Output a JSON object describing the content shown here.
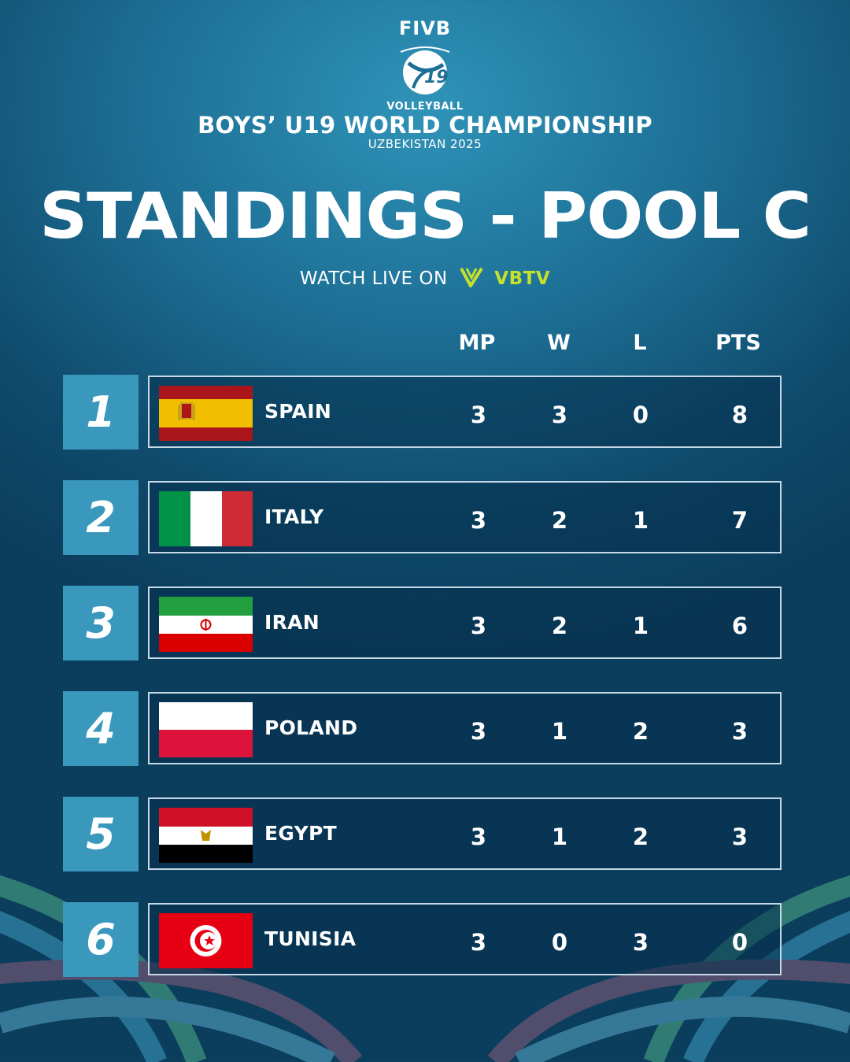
{
  "header": {
    "org": "FIVB",
    "logo_number": "19",
    "sport": "VOLLEYBALL",
    "championship": "BOYS’ U19 WORLD CHAMPIONSHIP",
    "host": "UZBEKISTAN 2025"
  },
  "title": "STANDINGS - POOL C",
  "watch": {
    "label": "WATCH LIVE ON",
    "brand": "VBTV"
  },
  "columns": {
    "mp": "MP",
    "w": "W",
    "l": "L",
    "pts": "PTS"
  },
  "standings": [
    {
      "rank": "1",
      "team": "SPAIN",
      "flag": "spain-flag-icon",
      "mp": "3",
      "w": "3",
      "l": "0",
      "pts": "8"
    },
    {
      "rank": "2",
      "team": "ITALY",
      "flag": "italy-flag-icon",
      "mp": "3",
      "w": "2",
      "l": "1",
      "pts": "7"
    },
    {
      "rank": "3",
      "team": "IRAN",
      "flag": "iran-flag-icon",
      "mp": "3",
      "w": "2",
      "l": "1",
      "pts": "6"
    },
    {
      "rank": "4",
      "team": "POLAND",
      "flag": "poland-flag-icon",
      "mp": "3",
      "w": "1",
      "l": "2",
      "pts": "3"
    },
    {
      "rank": "5",
      "team": "EGYPT",
      "flag": "egypt-flag-icon",
      "mp": "3",
      "w": "1",
      "l": "2",
      "pts": "3"
    },
    {
      "rank": "6",
      "team": "TUNISIA",
      "flag": "tunisia-flag-icon",
      "mp": "3",
      "w": "0",
      "l": "3",
      "pts": "0"
    }
  ],
  "colors": {
    "rank_box": "#3a98bd",
    "row_border": "#c7d9e6",
    "vbtv": "#c6e12c",
    "bg_dark": "#0b3d5c",
    "bg_light": "#2f93b8"
  }
}
